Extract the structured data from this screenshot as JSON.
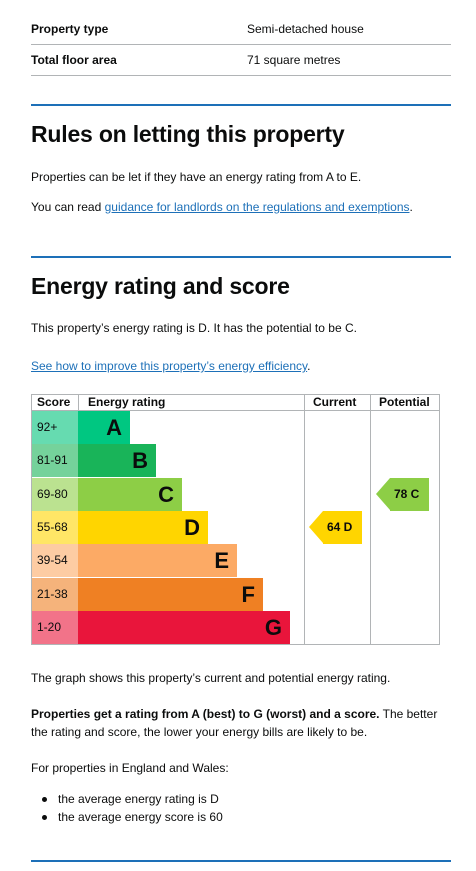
{
  "summary": [
    {
      "label": "Property type",
      "value": "Semi-detached house"
    },
    {
      "label": "Total floor area",
      "value": "71 square metres"
    }
  ],
  "letting": {
    "heading": "Rules on letting this property",
    "para1": "Properties can be let if they have an energy rating from A to E.",
    "para2_prefix": "You can read ",
    "para2_link": "guidance for landlords on the regulations and exemptions",
    "para2_suffix": "."
  },
  "energy": {
    "heading": "Energy rating and score",
    "para1": "This property’s energy rating is D. It has the potential to be C.",
    "link": "See how to improve this property’s energy efficiency",
    "link_suffix": "."
  },
  "chart_data": {
    "type": "table",
    "headers": {
      "score": "Score",
      "rating": "Energy rating",
      "current": "Current",
      "potential": "Potential"
    },
    "bands": [
      {
        "range": "92+",
        "letter": "A",
        "color": "#00c781",
        "score_color": "#66dbb0"
      },
      {
        "range": "81-91",
        "letter": "B",
        "color": "#19b459",
        "score_color": "#75d29b"
      },
      {
        "range": "69-80",
        "letter": "C",
        "color": "#8dce46",
        "score_color": "#bbe290"
      },
      {
        "range": "55-68",
        "letter": "D",
        "color": "#ffd500",
        "score_color": "#ffe666"
      },
      {
        "range": "39-54",
        "letter": "E",
        "color": "#fcaa65",
        "score_color": "#fdcca3"
      },
      {
        "range": "21-38",
        "letter": "F",
        "color": "#ef8023",
        "score_color": "#f5b37b"
      },
      {
        "range": "1-20",
        "letter": "G",
        "color": "#e9153b",
        "score_color": "#f27389"
      }
    ],
    "current": {
      "label": "64 D",
      "score": 64,
      "rating": "D",
      "color": "#ffd500"
    },
    "potential": {
      "label": "78 C",
      "score": 78,
      "rating": "C",
      "color": "#8dce46"
    }
  },
  "after_chart": {
    "para1": "The graph shows this property’s current and potential energy rating.",
    "para2_bold": "Properties get a rating from A (best) to G (worst) and a score.",
    "para2_rest": " The better the rating and score, the lower your energy bills are likely to be.",
    "para3": "For properties in England and Wales:",
    "bullets": [
      "the average energy rating is D",
      "the average energy score is 60"
    ]
  }
}
